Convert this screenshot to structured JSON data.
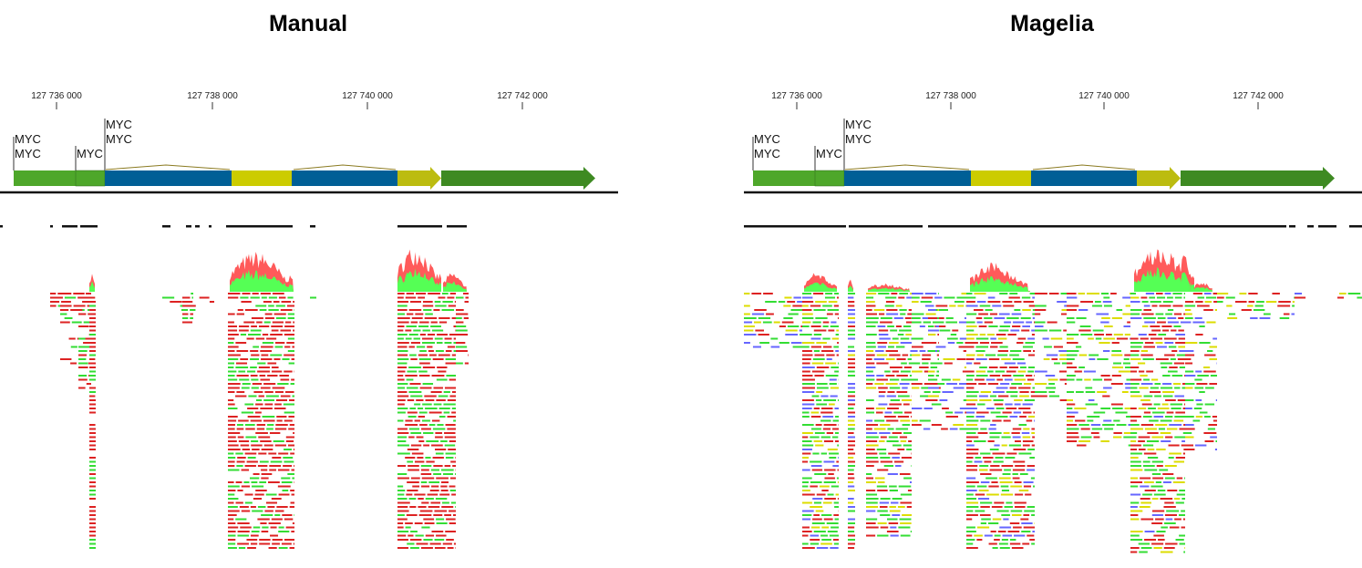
{
  "panels": [
    {
      "title": "Manual",
      "ticks": [
        "127 736 000",
        "127 738 000",
        "127 740 000",
        "127 742 000"
      ],
      "gene_labels": [
        "MYC",
        "MYC",
        "MYC",
        "MYC",
        "MYC"
      ]
    },
    {
      "title": "Magelia",
      "ticks": [
        "127 736 000",
        "127 738 000",
        "127 740 000",
        "127 742 000"
      ],
      "gene_labels": [
        "MYC",
        "MYC",
        "MYC",
        "MYC",
        "MYC"
      ]
    }
  ],
  "colors": {
    "utr_green": "#4ea72a",
    "cds_blue": "#005f96",
    "exon_yellow": "#cccc00",
    "arrow_green": "#3e8a22",
    "intron_line": "#8a7a20",
    "coverage_red": "#ff5a5a",
    "coverage_green": "#55ff55",
    "read_red": "#dd2222",
    "read_green": "#33dd33",
    "read_blue": "#6666ff",
    "read_yellow": "#dddd00"
  }
}
